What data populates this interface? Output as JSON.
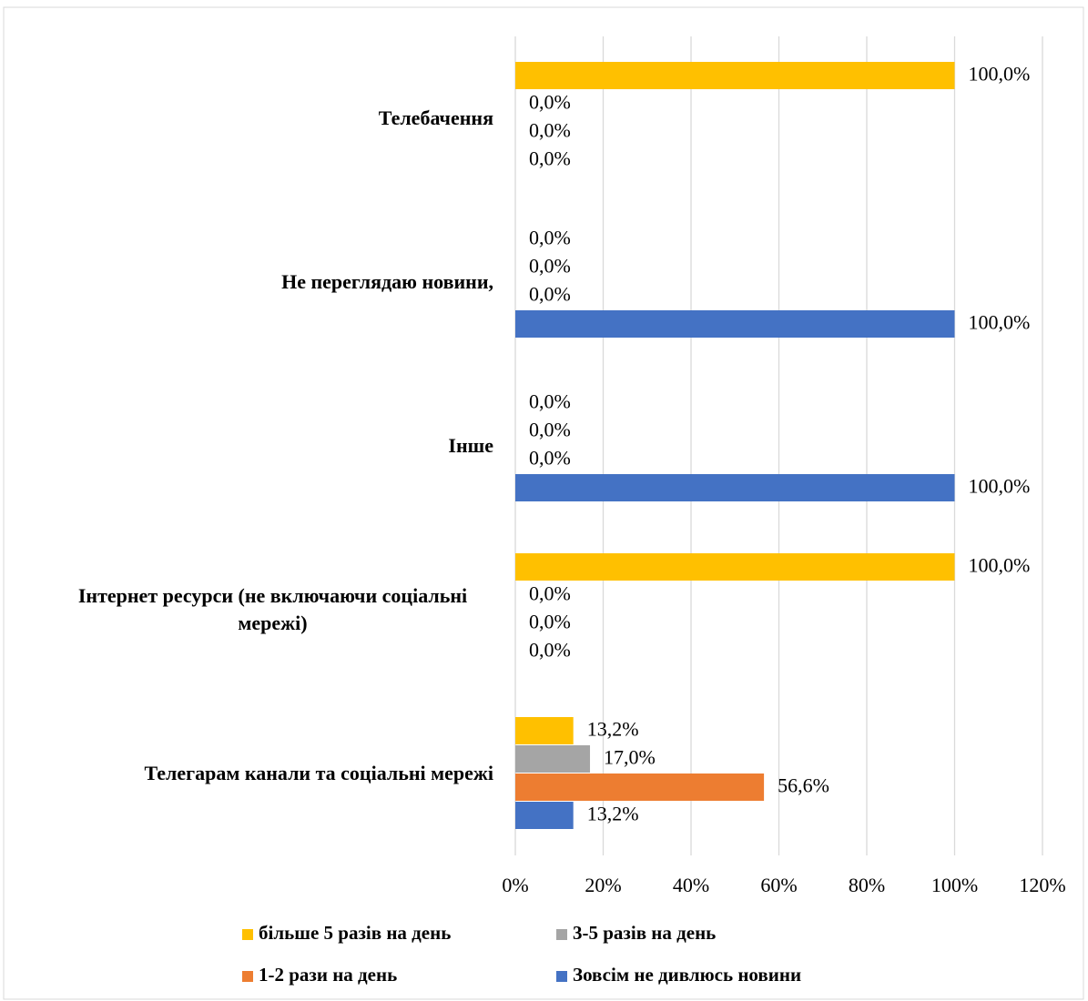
{
  "chart_data": {
    "type": "bar",
    "orientation": "horizontal",
    "categories": [
      "Телебачення",
      "Не переглядаю новини,",
      "Інше",
      "Інтернет ресурси (не включаючи соціальні мережі)",
      "Телегарам канали та соціальні мережі"
    ],
    "series": [
      {
        "name": "більше 5 разів на день",
        "color": "#ffc000",
        "values": [
          100,
          0,
          0,
          100,
          13.2
        ],
        "value_labels": [
          "100,0%",
          "0,0%",
          "0,0%",
          "100,0%",
          "13,2%"
        ]
      },
      {
        "name": "3-5 разів на день",
        "color": "#a5a5a5",
        "values": [
          0,
          0,
          0,
          0,
          17.0
        ],
        "value_labels": [
          "0,0%",
          "0,0%",
          "0,0%",
          "0,0%",
          "17,0%"
        ]
      },
      {
        "name": "1-2 рази на день",
        "color": "#ed7d31",
        "values": [
          0,
          0,
          0,
          0,
          56.6
        ],
        "value_labels": [
          "0,0%",
          "0,0%",
          "0,0%",
          "0,0%",
          "56,6%"
        ]
      },
      {
        "name": "Зовсім не дивлюсь новини",
        "color": "#4472c4",
        "values": [
          0,
          100,
          100,
          0,
          13.2
        ],
        "value_labels": [
          "0,0%",
          "100,0%",
          "100,0%",
          "0,0%",
          "13,2%"
        ]
      }
    ],
    "xlim": [
      0,
      120
    ],
    "xticks": [
      {
        "value": 0,
        "label": "0%"
      },
      {
        "value": 20,
        "label": "20%"
      },
      {
        "value": 40,
        "label": "40%"
      },
      {
        "value": 60,
        "label": "60%"
      },
      {
        "value": 80,
        "label": "80%"
      },
      {
        "value": 100,
        "label": "100%"
      },
      {
        "value": 120,
        "label": "120%"
      }
    ],
    "grid": true,
    "legend": "bottom"
  }
}
